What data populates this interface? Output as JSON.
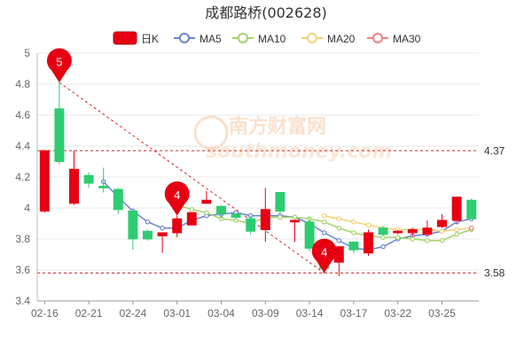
{
  "chart_data": {
    "type": "candlestick",
    "title": "成都路桥(002628)",
    "ylim": [
      3.4,
      5.0
    ],
    "y_ticks": [
      "3.4",
      "3.6",
      "3.8",
      "4",
      "4.2",
      "4.4",
      "4.6",
      "4.8",
      "5"
    ],
    "x_ticks": [
      {
        "index": 0,
        "label": "02-16"
      },
      {
        "index": 3,
        "label": "02-21"
      },
      {
        "index": 6,
        "label": "02-24"
      },
      {
        "index": 9,
        "label": "03-01"
      },
      {
        "index": 12,
        "label": "03-04"
      },
      {
        "index": 15,
        "label": "03-09"
      },
      {
        "index": 18,
        "label": "03-14"
      },
      {
        "index": 21,
        "label": "03-17"
      },
      {
        "index": 24,
        "label": "03-22"
      },
      {
        "index": 27,
        "label": "03-25"
      }
    ],
    "legend": [
      "日K",
      "MA5",
      "MA10",
      "MA20",
      "MA30"
    ],
    "colors": {
      "up": "#e60012",
      "down": "#2ecc71",
      "ma5": "#6b86cf",
      "ma10": "#a5d46a",
      "ma20": "#f7d074",
      "ma30": "#f08080",
      "ref_line": "#d62728",
      "grid": "#e8e8e8",
      "marker": "#e60012"
    },
    "candles": [
      {
        "open": 3.98,
        "close": 4.37,
        "high": 4.37,
        "low": 3.97
      },
      {
        "open": 4.64,
        "close": 4.3,
        "high": 4.81,
        "low": 4.28
      },
      {
        "open": 4.03,
        "close": 4.25,
        "high": 4.37,
        "low": 4.02
      },
      {
        "open": 4.21,
        "close": 4.16,
        "high": 4.23,
        "low": 4.13
      },
      {
        "open": 4.14,
        "close": 4.13,
        "high": 4.26,
        "low": 4.1
      },
      {
        "open": 4.12,
        "close": 3.99,
        "high": 4.13,
        "low": 3.96
      },
      {
        "open": 3.98,
        "close": 3.8,
        "high": 3.99,
        "low": 3.73
      },
      {
        "open": 3.85,
        "close": 3.8,
        "high": 3.86,
        "low": 3.79
      },
      {
        "open": 3.82,
        "close": 3.84,
        "high": 3.84,
        "low": 3.71
      },
      {
        "open": 3.84,
        "close": 3.93,
        "high": 3.95,
        "low": 3.81
      },
      {
        "open": 3.89,
        "close": 3.97,
        "high": 3.97,
        "low": 3.89
      },
      {
        "open": 4.03,
        "close": 4.05,
        "high": 4.11,
        "low": 4.03
      },
      {
        "open": 4.01,
        "close": 3.96,
        "high": 4.02,
        "low": 3.93
      },
      {
        "open": 3.96,
        "close": 3.94,
        "high": 3.97,
        "low": 3.93
      },
      {
        "open": 3.93,
        "close": 3.85,
        "high": 3.95,
        "low": 3.83
      },
      {
        "open": 3.86,
        "close": 3.99,
        "high": 4.13,
        "low": 3.78
      },
      {
        "open": 4.1,
        "close": 3.98,
        "high": 4.1,
        "low": 3.96
      },
      {
        "open": 3.91,
        "close": 3.92,
        "high": 3.92,
        "low": 3.78
      },
      {
        "open": 3.91,
        "close": 3.74,
        "high": 3.94,
        "low": 3.72
      },
      {
        "open": 3.68,
        "close": 3.61,
        "high": 3.7,
        "low": 3.58
      },
      {
        "open": 3.65,
        "close": 3.75,
        "high": 3.75,
        "low": 3.56
      },
      {
        "open": 3.78,
        "close": 3.73,
        "high": 3.78,
        "low": 3.71
      },
      {
        "open": 3.71,
        "close": 3.84,
        "high": 3.86,
        "low": 3.69
      },
      {
        "open": 3.87,
        "close": 3.83,
        "high": 3.88,
        "low": 3.82
      },
      {
        "open": 3.84,
        "close": 3.85,
        "high": 3.86,
        "low": 3.83
      },
      {
        "open": 3.84,
        "close": 3.86,
        "high": 3.87,
        "low": 3.81
      },
      {
        "open": 3.83,
        "close": 3.87,
        "high": 3.92,
        "low": 3.82
      },
      {
        "open": 3.88,
        "close": 3.92,
        "high": 3.96,
        "low": 3.87
      },
      {
        "open": 3.92,
        "close": 4.07,
        "high": 4.07,
        "low": 3.9
      },
      {
        "open": 4.05,
        "close": 3.93,
        "high": 4.06,
        "low": 3.93
      }
    ],
    "ma5": [
      null,
      null,
      null,
      null,
      4.17,
      4.07,
      3.98,
      3.91,
      3.87,
      3.87,
      3.92,
      3.95,
      3.96,
      3.97,
      3.95,
      3.95,
      3.95,
      3.94,
      3.9,
      3.84,
      3.79,
      3.74,
      3.73,
      3.75,
      3.8,
      3.82,
      3.83,
      3.85,
      3.91,
      3.93
    ],
    "ma10": [
      null,
      null,
      null,
      null,
      null,
      null,
      null,
      null,
      null,
      4.02,
      3.99,
      3.97,
      3.93,
      3.92,
      3.9,
      3.94,
      3.94,
      3.94,
      3.93,
      3.91,
      3.87,
      3.84,
      3.82,
      3.81,
      3.81,
      3.8,
      3.79,
      3.79,
      3.83,
      3.86
    ],
    "ma20": [
      null,
      null,
      null,
      null,
      null,
      null,
      null,
      null,
      null,
      null,
      null,
      null,
      null,
      null,
      null,
      null,
      null,
      null,
      null,
      3.95,
      3.93,
      3.91,
      3.89,
      3.87,
      3.86,
      3.86,
      3.86,
      3.85,
      3.86,
      3.87
    ],
    "ma30": [
      null,
      null,
      null,
      null,
      null,
      null,
      null,
      null,
      null,
      null,
      null,
      null,
      null,
      null,
      null,
      null,
      null,
      null,
      null,
      null,
      null,
      null,
      null,
      null,
      null,
      null,
      null,
      null,
      null,
      3.87
    ],
    "ref_lines": [
      {
        "value": 4.37,
        "label": "4.37"
      },
      {
        "value": 3.58,
        "label": "3.58"
      }
    ],
    "markers": [
      {
        "index": 1,
        "value": 4.81,
        "label": "5"
      },
      {
        "index": 9,
        "value": 3.95,
        "label": "4"
      },
      {
        "index": 19,
        "value": 3.58,
        "label": "4"
      }
    ],
    "trend_line": {
      "from_index": 1,
      "from_value": 4.81,
      "to_index": 19,
      "to_value": 3.58
    },
    "grid": true,
    "watermark": "南方财富网 southmoney.com"
  }
}
